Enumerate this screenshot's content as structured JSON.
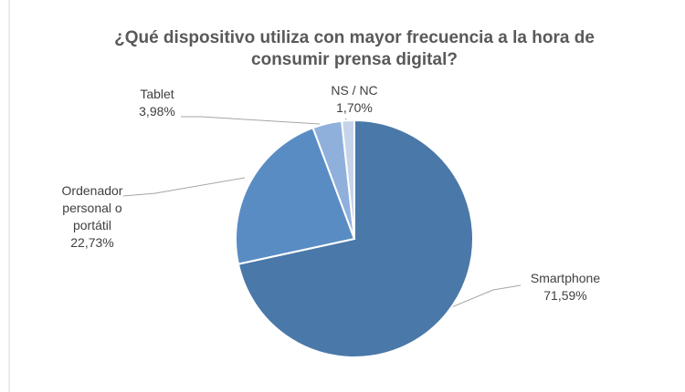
{
  "chart_data": {
    "type": "pie",
    "title": "¿Qué dispositivo utiliza con mayor frecuencia a la hora de consumir prensa digital?",
    "categories": [
      "Smartphone",
      "Ordenador personal o portátil",
      "Tablet",
      "NS / NC"
    ],
    "values": [
      71.59,
      22.73,
      3.98,
      1.7
    ],
    "value_labels": [
      "71,59%",
      "22,73%",
      "3,98%",
      "1,70%"
    ],
    "colors": [
      "#4a78a8",
      "#5a8cc4",
      "#8fb0db",
      "#c5d4ea"
    ]
  }
}
